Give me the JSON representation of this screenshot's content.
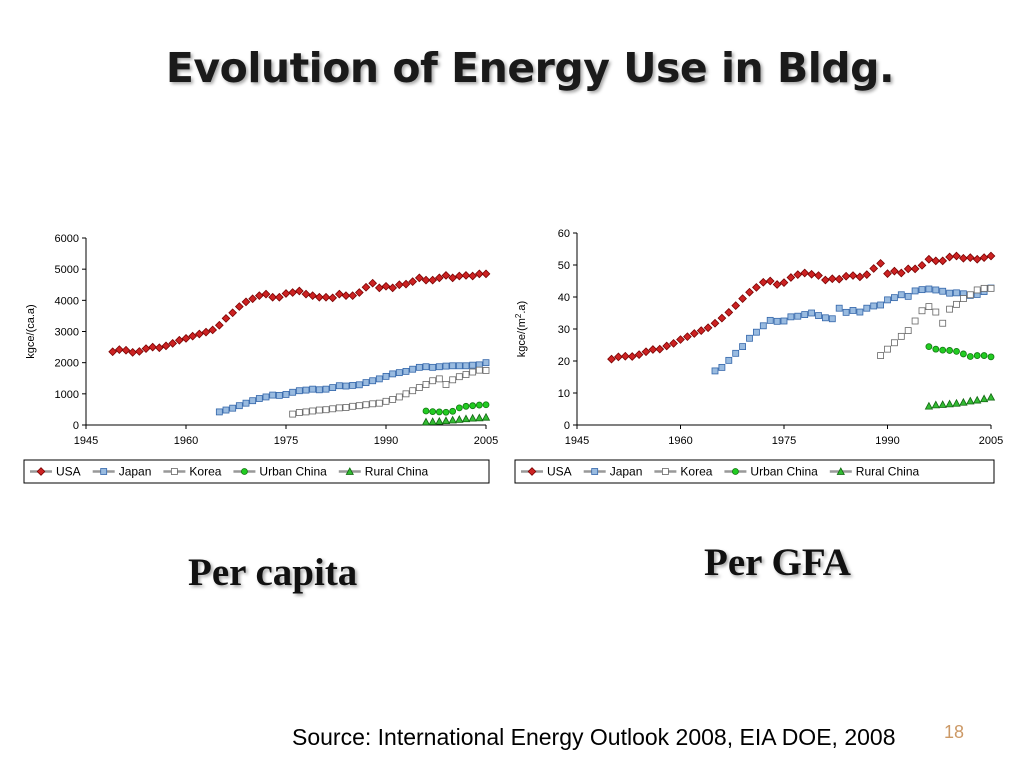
{
  "slide": {
    "title": "Evolution of Energy Use in Bldg.",
    "caption_left": "Per capita",
    "caption_right": "Per GFA",
    "source": "Source: International Energy Outlook 2008, EIA DOE, 2008",
    "page_number": "18"
  },
  "series_styles": [
    {
      "name": "USA",
      "marker": "diamond",
      "fill": "#cc2222",
      "stroke": "#7a0000"
    },
    {
      "name": "Japan",
      "marker": "square",
      "fill": "#99bbe0",
      "stroke": "#3366aa"
    },
    {
      "name": "Korea",
      "marker": "square",
      "fill": "#ffffff",
      "stroke": "#666666"
    },
    {
      "name": "Urban China",
      "marker": "circle",
      "fill": "#22cc22",
      "stroke": "#117711"
    },
    {
      "name": "Rural China",
      "marker": "triangle",
      "fill": "#33bb33",
      "stroke": "#116611"
    }
  ],
  "chart_data": [
    {
      "type": "scatter",
      "title": "",
      "xlabel": "",
      "ylabel": "kgce/(ca.a)",
      "xlim": [
        1945,
        2005
      ],
      "ylim": [
        0,
        6000
      ],
      "xticks": [
        "1945",
        "1960",
        "1975",
        "1990",
        "2005"
      ],
      "yticks": [
        "0",
        "1000",
        "2000",
        "3000",
        "4000",
        "5000",
        "6000"
      ],
      "legend": "bottom",
      "series": [
        {
          "name": "USA",
          "x": [
            1949,
            1950,
            1951,
            1952,
            1953,
            1954,
            1955,
            1956,
            1957,
            1958,
            1959,
            1960,
            1961,
            1962,
            1963,
            1964,
            1965,
            1966,
            1967,
            1968,
            1969,
            1970,
            1971,
            1972,
            1973,
            1974,
            1975,
            1976,
            1977,
            1978,
            1979,
            1980,
            1981,
            1982,
            1983,
            1984,
            1985,
            1986,
            1987,
            1988,
            1989,
            1990,
            1991,
            1992,
            1993,
            1994,
            1995,
            1996,
            1997,
            1998,
            1999,
            2000,
            2001,
            2002,
            2003,
            2004,
            2005
          ],
          "y": [
            2350,
            2420,
            2400,
            2330,
            2360,
            2450,
            2500,
            2480,
            2540,
            2620,
            2720,
            2780,
            2850,
            2920,
            2980,
            3050,
            3200,
            3420,
            3600,
            3800,
            3950,
            4050,
            4150,
            4200,
            4100,
            4100,
            4220,
            4250,
            4300,
            4200,
            4150,
            4100,
            4100,
            4080,
            4200,
            4150,
            4150,
            4250,
            4420,
            4550,
            4400,
            4450,
            4400,
            4500,
            4520,
            4600,
            4720,
            4650,
            4650,
            4720,
            4800,
            4720,
            4780,
            4800,
            4780,
            4850,
            4850
          ]
        },
        {
          "name": "Japan",
          "x": [
            1965,
            1966,
            1967,
            1968,
            1969,
            1970,
            1971,
            1972,
            1973,
            1974,
            1975,
            1976,
            1977,
            1978,
            1979,
            1980,
            1981,
            1982,
            1983,
            1984,
            1985,
            1986,
            1987,
            1988,
            1989,
            1990,
            1991,
            1992,
            1993,
            1994,
            1995,
            1996,
            1997,
            1998,
            1999,
            2000,
            2001,
            2002,
            2003,
            2004,
            2005
          ],
          "y": [
            420,
            480,
            540,
            620,
            700,
            780,
            850,
            900,
            960,
            950,
            980,
            1050,
            1100,
            1120,
            1150,
            1130,
            1150,
            1200,
            1260,
            1250,
            1270,
            1290,
            1360,
            1420,
            1480,
            1560,
            1640,
            1680,
            1720,
            1790,
            1850,
            1870,
            1850,
            1870,
            1890,
            1900,
            1900,
            1900,
            1920,
            1930,
            2000
          ]
        },
        {
          "name": "Korea",
          "x": [
            1976,
            1977,
            1978,
            1979,
            1980,
            1981,
            1982,
            1983,
            1984,
            1985,
            1986,
            1987,
            1988,
            1989,
            1990,
            1991,
            1992,
            1993,
            1994,
            1995,
            1996,
            1997,
            1998,
            1999,
            2000,
            2001,
            2002,
            2003,
            2004,
            2005
          ],
          "y": [
            350,
            400,
            420,
            450,
            480,
            490,
            520,
            550,
            560,
            600,
            620,
            650,
            680,
            700,
            760,
            820,
            900,
            1000,
            1100,
            1200,
            1300,
            1420,
            1480,
            1300,
            1450,
            1550,
            1620,
            1700,
            1760,
            1750
          ]
        },
        {
          "name": "Urban China",
          "x": [
            1996,
            1997,
            1998,
            1999,
            2000,
            2001,
            2002,
            2003,
            2004,
            2005
          ],
          "y": [
            450,
            430,
            420,
            410,
            440,
            550,
            600,
            620,
            640,
            650
          ]
        },
        {
          "name": "Rural China",
          "x": [
            1996,
            1997,
            1998,
            1999,
            2000,
            2001,
            2002,
            2003,
            2004,
            2005
          ],
          "y": [
            100,
            110,
            120,
            140,
            160,
            180,
            200,
            220,
            230,
            250
          ]
        }
      ]
    },
    {
      "type": "scatter",
      "title": "",
      "xlabel": "",
      "ylabel": "kgce/(m²·a)",
      "ylabel_main": "kgce/(m",
      "ylabel_sup": "2",
      "ylabel_tail": ".a)",
      "xlim": [
        1945,
        2005
      ],
      "ylim": [
        0,
        60
      ],
      "xticks": [
        "1945",
        "1960",
        "1975",
        "1990",
        "2005"
      ],
      "yticks": [
        "0",
        "10",
        "20",
        "30",
        "40",
        "50",
        "60"
      ],
      "legend": "bottom",
      "series": [
        {
          "name": "USA",
          "x": [
            1950,
            1951,
            1952,
            1953,
            1954,
            1955,
            1956,
            1957,
            1958,
            1959,
            1960,
            1961,
            1962,
            1963,
            1964,
            1965,
            1966,
            1967,
            1968,
            1969,
            1970,
            1971,
            1972,
            1973,
            1974,
            1975,
            1976,
            1977,
            1978,
            1979,
            1980,
            1981,
            1982,
            1983,
            1984,
            1985,
            1986,
            1987,
            1988,
            1989,
            1990,
            1991,
            1992,
            1993,
            1994,
            1995,
            1996,
            1997,
            1998,
            1999,
            2000,
            2001,
            2002,
            2003,
            2004,
            2005
          ],
          "y": [
            20.6,
            21.3,
            21.5,
            21.4,
            22,
            22.9,
            23.6,
            23.7,
            24.7,
            25.5,
            26.7,
            27.6,
            28.6,
            29.5,
            30.4,
            31.8,
            33.4,
            35.2,
            37.3,
            39.5,
            41.5,
            43,
            44.6,
            45,
            43.9,
            44.5,
            46.1,
            47,
            47.5,
            47.1,
            46.7,
            45.3,
            45.7,
            45.6,
            46.5,
            46.7,
            46.3,
            47,
            48.9,
            50.5,
            47.3,
            48.1,
            47.5,
            48.8,
            48.8,
            49.9,
            51.8,
            51.3,
            51.3,
            52.5,
            52.8,
            52.1,
            52.3,
            51.8,
            52.3,
            52.8
          ]
        },
        {
          "name": "Japan",
          "x": [
            1965,
            1966,
            1967,
            1968,
            1969,
            1970,
            1971,
            1972,
            1973,
            1974,
            1975,
            1976,
            1977,
            1978,
            1979,
            1980,
            1981,
            1982,
            1983,
            1984,
            1985,
            1986,
            1987,
            1988,
            1989,
            1990,
            1991,
            1992,
            1993,
            1994,
            1995,
            1996,
            1997,
            1998,
            1999,
            2000,
            2001,
            2002,
            2003,
            2004,
            2005
          ],
          "y": [
            16.9,
            18,
            20.2,
            22.4,
            24.5,
            27.1,
            29,
            31,
            32.7,
            32.4,
            32.5,
            33.8,
            34,
            34.5,
            35,
            34.2,
            33.5,
            33.2,
            36.5,
            35.2,
            35.8,
            35.3,
            36.5,
            37.2,
            37.5,
            39.1,
            39.8,
            40.7,
            40.2,
            41.9,
            42.3,
            42.5,
            42.2,
            41.8,
            41.2,
            41.3,
            41,
            40.5,
            40.8,
            41.7,
            42.8
          ]
        },
        {
          "name": "Korea",
          "x": [
            1989,
            1990,
            1991,
            1992,
            1993,
            1994,
            1995,
            1996,
            1997,
            1998,
            1999,
            2000,
            2001,
            2002,
            2003,
            2004,
            2005
          ],
          "y": [
            21.7,
            23.7,
            25.7,
            27.7,
            29.5,
            32.5,
            35.7,
            37,
            35.3,
            31.8,
            36.2,
            37.7,
            39.5,
            40.7,
            42.2,
            42.7,
            42.7
          ]
        },
        {
          "name": "Urban China",
          "x": [
            1996,
            1997,
            1998,
            1999,
            2000,
            2001,
            2002,
            2003,
            2004,
            2005
          ],
          "y": [
            24.5,
            23.7,
            23.4,
            23.3,
            23,
            22.2,
            21.4,
            21.7,
            21.7,
            21.3
          ]
        },
        {
          "name": "Rural China",
          "x": [
            1996,
            1997,
            1998,
            1999,
            2000,
            2001,
            2002,
            2003,
            2004,
            2005
          ],
          "y": [
            5.9,
            6.3,
            6.4,
            6.6,
            6.8,
            7.1,
            7.5,
            7.8,
            8.2,
            8.7
          ]
        }
      ]
    }
  ]
}
